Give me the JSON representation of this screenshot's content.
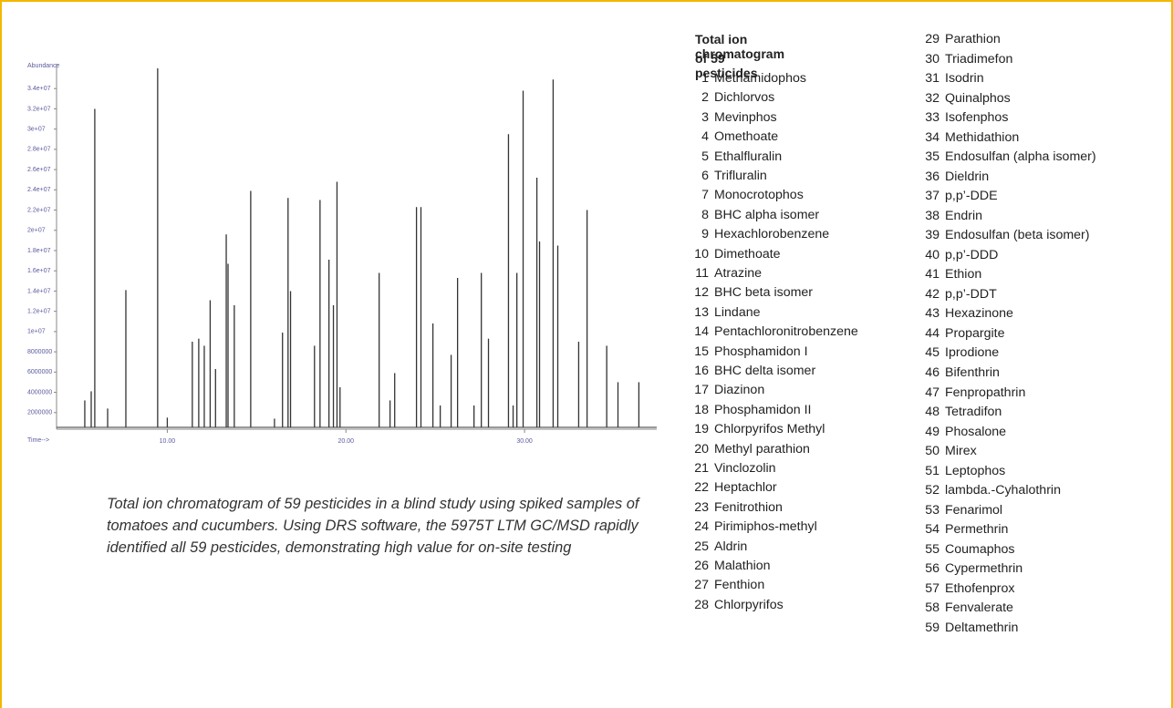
{
  "chart_data": {
    "type": "stem",
    "ylabel": "Abundance",
    "xlabel": "Time-->",
    "color": "#333333",
    "xlim": [
      3.8,
      37.4
    ],
    "ylim": [
      0,
      36000000
    ],
    "xticks": [
      {
        "value": 10,
        "label": "10.00"
      },
      {
        "value": 20,
        "label": "20.00"
      },
      {
        "value": 30,
        "label": "30.00"
      }
    ],
    "yticks": [
      2000000,
      4000000,
      6000000,
      8000000,
      {
        "value": 10000000,
        "label": "1e+07"
      },
      {
        "value": 12000000,
        "label": "1.2e+07"
      },
      {
        "value": 14000000,
        "label": "1.4e+07"
      },
      {
        "value": 16000000,
        "label": "1.6e+07"
      },
      {
        "value": 18000000,
        "label": "1.8e+07"
      },
      {
        "value": 20000000,
        "label": "2e+07"
      },
      {
        "value": 22000000,
        "label": "2.2e+07"
      },
      {
        "value": 24000000,
        "label": "2.4e+07"
      },
      {
        "value": 26000000,
        "label": "2.6e+07"
      },
      {
        "value": 28000000,
        "label": "2.8e+07"
      },
      {
        "value": 30000000,
        "label": "3e+07"
      },
      {
        "value": 32000000,
        "label": "3.2e+07"
      },
      {
        "value": 34000000,
        "label": "3.4e+07"
      }
    ],
    "x": [
      5.38,
      5.74,
      5.94,
      6.66,
      7.68,
      9.46,
      10.0,
      11.4,
      11.76,
      12.07,
      12.4,
      12.7,
      13.3,
      13.4,
      13.75,
      14.67,
      16.0,
      16.45,
      16.76,
      16.9,
      18.24,
      18.55,
      19.05,
      19.3,
      19.5,
      19.67,
      21.86,
      22.47,
      22.73,
      23.95,
      24.2,
      24.87,
      25.28,
      25.89,
      26.25,
      27.17,
      27.58,
      27.98,
      29.1,
      29.36,
      29.57,
      29.92,
      30.69,
      30.84,
      31.6,
      31.86,
      33.03,
      33.5,
      34.6,
      35.23,
      36.4
    ],
    "values": [
      3200000,
      4100000,
      32000000,
      2400000,
      14100000,
      36000000,
      1500000,
      9000000,
      9300000,
      8600000,
      13100000,
      6300000,
      19600000,
      16700000,
      12600000,
      23900000,
      1400000,
      9900000,
      23200000,
      14000000,
      8600000,
      23000000,
      17100000,
      12600000,
      24800000,
      4500000,
      15800000,
      3200000,
      5900000,
      22300000,
      22300000,
      10800000,
      2700000,
      7700000,
      15300000,
      2700000,
      15800000,
      9300000,
      29500000,
      2700000,
      15800000,
      33800000,
      25200000,
      18900000,
      34900000,
      18500000,
      9000000,
      22000000,
      8600000,
      5000000,
      5000000
    ]
  },
  "caption": "Total ion chromatogram of 59 pesticides in a blind study using spiked samples of tomatoes and cucumbers. Using DRS software, the 5975T LTM GC/MSD rapidly identified all 59 pesticides, demonstrating high value for on-site testing",
  "legend": {
    "title_lines": [
      "Total ion chromatogram",
      "of 59 pesticides"
    ],
    "items": [
      {
        "number": 1,
        "name": "Methamidophos"
      },
      {
        "number": 2,
        "name": "Dichlorvos"
      },
      {
        "number": 3,
        "name": "Mevinphos"
      },
      {
        "number": 4,
        "name": "Omethoate"
      },
      {
        "number": 5,
        "name": "Ethalfluralin"
      },
      {
        "number": 6,
        "name": "Trifluralin"
      },
      {
        "number": 7,
        "name": "Monocrotophos"
      },
      {
        "number": 8,
        "name": "BHC alpha isomer"
      },
      {
        "number": 9,
        "name": "Hexachlorobenzene"
      },
      {
        "number": 10,
        "name": "Dimethoate"
      },
      {
        "number": 11,
        "name": "Atrazine"
      },
      {
        "number": 12,
        "name": "BHC beta isomer"
      },
      {
        "number": 13,
        "name": "Lindane"
      },
      {
        "number": 14,
        "name": "Pentachloronitrobenzene"
      },
      {
        "number": 15,
        "name": "Phosphamidon I"
      },
      {
        "number": 16,
        "name": "BHC delta isomer"
      },
      {
        "number": 17,
        "name": "Diazinon"
      },
      {
        "number": 18,
        "name": "Phosphamidon II"
      },
      {
        "number": 19,
        "name": "Chlorpyrifos Methyl"
      },
      {
        "number": 20,
        "name": "Methyl parathion"
      },
      {
        "number": 21,
        "name": "Vinclozolin"
      },
      {
        "number": 22,
        "name": "Heptachlor"
      },
      {
        "number": 23,
        "name": "Fenitrothion"
      },
      {
        "number": 24,
        "name": "Pirimiphos-methyl"
      },
      {
        "number": 25,
        "name": "Aldrin"
      },
      {
        "number": 26,
        "name": "Malathion"
      },
      {
        "number": 27,
        "name": "Fenthion"
      },
      {
        "number": 28,
        "name": "Chlorpyrifos"
      },
      {
        "number": 29,
        "name": "Parathion"
      },
      {
        "number": 30,
        "name": "Triadimefon"
      },
      {
        "number": 31,
        "name": "Isodrin"
      },
      {
        "number": 32,
        "name": "Quinalphos"
      },
      {
        "number": 33,
        "name": "Isofenphos"
      },
      {
        "number": 34,
        "name": "Methidathion"
      },
      {
        "number": 35,
        "name": "Endosulfan (alpha isomer)"
      },
      {
        "number": 36,
        "name": "Dieldrin"
      },
      {
        "number": 37,
        "name": "p,p’-DDE"
      },
      {
        "number": 38,
        "name": "Endrin"
      },
      {
        "number": 39,
        "name": "Endosulfan (beta isomer)"
      },
      {
        "number": 40,
        "name": "p,p’-DDD"
      },
      {
        "number": 41,
        "name": "Ethion"
      },
      {
        "number": 42,
        "name": "p,p’-DDT"
      },
      {
        "number": 43,
        "name": "Hexazinone"
      },
      {
        "number": 44,
        "name": "Propargite"
      },
      {
        "number": 45,
        "name": "Iprodione"
      },
      {
        "number": 46,
        "name": "Bifenthrin"
      },
      {
        "number": 47,
        "name": "Fenpropathrin"
      },
      {
        "number": 48,
        "name": "Tetradifon"
      },
      {
        "number": 49,
        "name": "Phosalone"
      },
      {
        "number": 50,
        "name": "Mirex"
      },
      {
        "number": 51,
        "name": "Leptophos"
      },
      {
        "number": 52,
        "name": "lambda.-Cyhalothrin"
      },
      {
        "number": 53,
        "name": "Fenarimol"
      },
      {
        "number": 54,
        "name": "Permethrin"
      },
      {
        "number": 55,
        "name": "Coumaphos"
      },
      {
        "number": 56,
        "name": "Cypermethrin"
      },
      {
        "number": 57,
        "name": "Ethofenprox"
      },
      {
        "number": 58,
        "name": "Fenvalerate"
      },
      {
        "number": 59,
        "name": "Deltamethrin"
      }
    ]
  }
}
